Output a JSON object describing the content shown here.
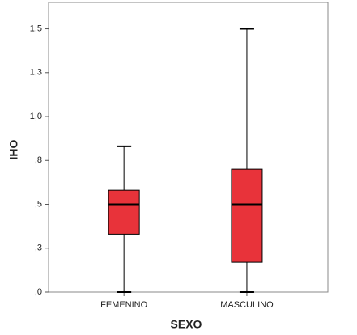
{
  "chart_data": {
    "type": "box",
    "x_label": "SEXO",
    "y_label": "IHO",
    "categories": [
      "FEMENINO",
      "MASCULINO"
    ],
    "boxes": [
      {
        "min": 0,
        "q1": 0.33,
        "median": 0.5,
        "q3": 0.58,
        "max": 0.83
      },
      {
        "min": 0,
        "q1": 0.17,
        "median": 0.5,
        "q3": 0.7,
        "max": 1.5
      }
    ],
    "color": "#e8333a",
    "ylim": [
      0,
      1.65
    ],
    "yticks": [
      {
        "value": 0,
        "label": ",0"
      },
      {
        "value": 0.25,
        "label": ",3"
      },
      {
        "value": 0.5,
        "label": ",5"
      },
      {
        "value": 0.75,
        "label": ",8"
      },
      {
        "value": 1.0,
        "label": "1,0"
      },
      {
        "value": 1.25,
        "label": "1,3"
      },
      {
        "value": 1.5,
        "label": "1,5"
      }
    ]
  }
}
